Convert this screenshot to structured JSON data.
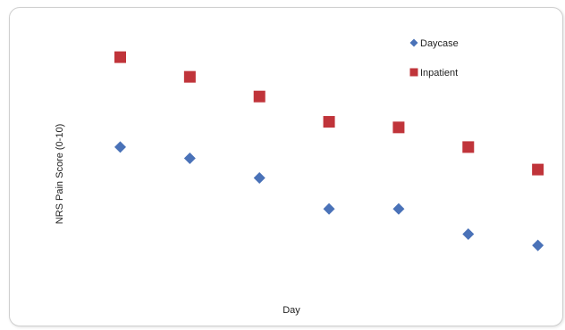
{
  "chart_data": {
    "type": "scatter",
    "title": "",
    "xlabel": "Day",
    "ylabel": "NRS Pain Score (0-10)",
    "x": [
      1,
      2,
      3,
      4,
      5,
      6,
      7
    ],
    "xlim": [
      0.3,
      7.3
    ],
    "ylim": [
      0,
      10
    ],
    "grid": false,
    "legend_position": "top-right",
    "series": [
      {
        "name": "Daycase",
        "marker": "diamond",
        "color": "#4a72b8",
        "values": [
          5.4,
          5.0,
          4.3,
          3.2,
          3.2,
          2.3,
          1.9
        ]
      },
      {
        "name": "Inpatient",
        "marker": "square",
        "color": "#c0343a",
        "values": [
          8.6,
          7.9,
          7.2,
          6.3,
          6.1,
          5.4,
          4.6
        ]
      }
    ]
  }
}
